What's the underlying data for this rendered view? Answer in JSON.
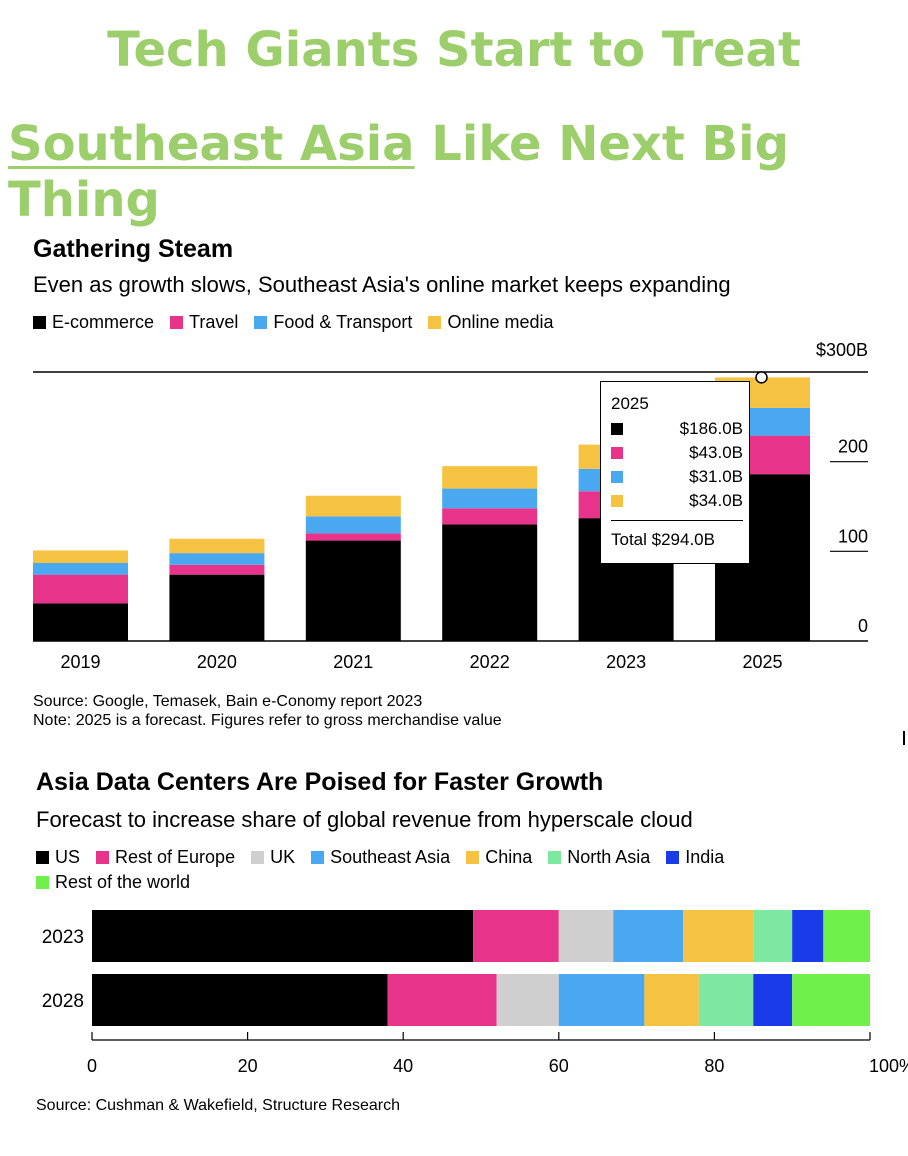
{
  "headline": {
    "line1": "Tech Giants Start to Treat",
    "line2_underlined": "Southeast Asia",
    "line2_rest": " Like Next Big Thing"
  },
  "colors": {
    "headline": "#9ccf6b",
    "ecommerce": "#000000",
    "travel": "#e8338a",
    "food_transport": "#4aa8f0",
    "online_media": "#f5c242",
    "us": "#000000",
    "rest_of_europe": "#e8338a",
    "uk": "#cfcfcf",
    "southeast_asia": "#4aa8f0",
    "china": "#f5c242",
    "north_asia": "#7de8a0",
    "india": "#1a3be8",
    "rest_of_world": "#6ff04a"
  },
  "chart1": {
    "title": "Gathering Steam",
    "subtitle": "Even as growth slows, Southeast Asia's online market keeps expanding",
    "source": "Source: Google, Temasek, Bain e-Conomy report 2023",
    "note": "Note: 2025 is a forecast. Figures refer to gross merchandise value",
    "tooltip": {
      "year": "2025",
      "values": [
        "$186.0B",
        "$43.0B",
        "$31.0B",
        "$34.0B"
      ],
      "total": "Total $294.0B"
    }
  },
  "chart2": {
    "title": "Asia Data Centers Are Poised for Faster Growth",
    "subtitle": "Forecast to increase share of global revenue from hyperscale cloud",
    "source": "Source: Cushman & Wakefield, Structure Research"
  },
  "chart_data": [
    {
      "type": "bar",
      "stacked": true,
      "title": "Gathering Steam",
      "subtitle": "Even as growth slows, Southeast Asia's online market keeps expanding",
      "categories": [
        "2019",
        "2020",
        "2021",
        "2022",
        "2023",
        "2025"
      ],
      "series": [
        {
          "name": "E-commerce",
          "color": "#000000",
          "values": [
            42,
            74,
            112,
            130,
            137,
            186
          ]
        },
        {
          "name": "Travel",
          "color": "#e8338a",
          "values": [
            32,
            11,
            8,
            18,
            30,
            43
          ]
        },
        {
          "name": "Food & Transport",
          "color": "#4aa8f0",
          "values": [
            13,
            13,
            19,
            22,
            25,
            31
          ]
        },
        {
          "name": "Online media",
          "color": "#f5c242",
          "values": [
            14,
            16,
            23,
            25,
            27,
            34
          ]
        }
      ],
      "yticks": [
        "0",
        "100",
        "200",
        "$300B"
      ],
      "ylim": [
        0,
        300
      ],
      "ytick_values": [
        0,
        100,
        200,
        300
      ],
      "legend": "top-left"
    },
    {
      "type": "bar",
      "orientation": "horizontal",
      "stacked": true,
      "title": "Asia Data Centers Are Poised for Faster Growth",
      "subtitle": "Forecast to increase share of global revenue from hyperscale cloud",
      "categories": [
        "2023",
        "2028"
      ],
      "series": [
        {
          "name": "US",
          "color": "#000000",
          "values": [
            49,
            38
          ]
        },
        {
          "name": "Rest of Europe",
          "color": "#e8338a",
          "values": [
            11,
            14
          ]
        },
        {
          "name": "UK",
          "color": "#cfcfcf",
          "values": [
            7,
            8
          ]
        },
        {
          "name": "Southeast Asia",
          "color": "#4aa8f0",
          "values": [
            9,
            11
          ]
        },
        {
          "name": "China",
          "color": "#f5c242",
          "values": [
            9,
            7
          ]
        },
        {
          "name": "North Asia",
          "color": "#7de8a0",
          "values": [
            5,
            7
          ]
        },
        {
          "name": "India",
          "color": "#1a3be8",
          "values": [
            4,
            5
          ]
        },
        {
          "name": "Rest of the world",
          "color": "#6ff04a",
          "values": [
            6,
            10
          ]
        }
      ],
      "xticks": [
        "0",
        "20",
        "40",
        "60",
        "80",
        "100%"
      ],
      "xtick_values": [
        0,
        20,
        40,
        60,
        80,
        100
      ],
      "xlim": [
        0,
        100
      ],
      "legend": "top-left"
    }
  ]
}
